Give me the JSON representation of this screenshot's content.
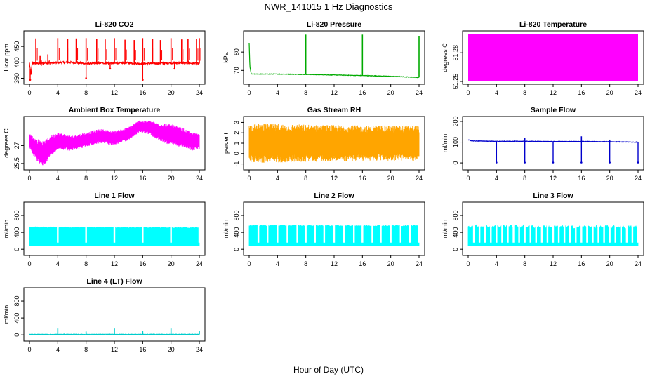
{
  "title": "NWR_141015  1 Hz Diagnostics",
  "xlabel": "Hour of Day (UTC)",
  "chart_data": [
    {
      "type": "line",
      "title": "Li-820 CO2",
      "ylabel": "Licor ppm",
      "color": "#ff0000",
      "xlim": [
        0,
        24
      ],
      "xticks": [
        0,
        4,
        8,
        12,
        16,
        20,
        24
      ],
      "ylim": [
        340,
        490
      ],
      "yticks": [
        350,
        400,
        450
      ],
      "pattern": "spiky",
      "series": [
        {
          "name": "",
          "values": [
            [
              0,
              398
            ],
            [
              0.2,
              360
            ],
            [
              0.4,
              398
            ],
            [
              1.0,
              396
            ],
            [
              1.6,
              397
            ],
            [
              2.0,
              398
            ],
            [
              4.0,
              399
            ],
            [
              6.0,
              400
            ],
            [
              8.0,
              396
            ],
            [
              10.0,
              398
            ],
            [
              12.0,
              397
            ],
            [
              14.0,
              398
            ],
            [
              16.0,
              396
            ],
            [
              18.0,
              397
            ],
            [
              20.0,
              398
            ],
            [
              22.0,
              398
            ],
            [
              24.0,
              396
            ]
          ]
        }
      ],
      "spikes": [
        [
          0.9,
          475
        ],
        [
          1.5,
          420
        ],
        [
          2.6,
          425
        ],
        [
          4.0,
          476
        ],
        [
          5.4,
          474
        ],
        [
          6.6,
          475
        ],
        [
          8.0,
          476
        ],
        [
          9.5,
          474
        ],
        [
          10.7,
          472
        ],
        [
          12.0,
          476
        ],
        [
          13.5,
          471
        ],
        [
          14.8,
          470
        ],
        [
          16.0,
          476
        ],
        [
          17.4,
          474
        ],
        [
          18.5,
          470
        ],
        [
          20.0,
          476
        ],
        [
          21.5,
          472
        ],
        [
          22.4,
          474
        ],
        [
          23.6,
          474
        ],
        [
          24.0,
          476
        ]
      ],
      "dips": [
        [
          0.1,
          345
        ],
        [
          8.0,
          350
        ],
        [
          16.0,
          345
        ],
        [
          11.4,
          380
        ],
        [
          20.5,
          380
        ]
      ]
    },
    {
      "type": "line",
      "title": "Li-820 Pressure",
      "ylabel": "kPa",
      "color": "#00aa00",
      "xlim": [
        0,
        24
      ],
      "xticks": [
        0,
        4,
        8,
        12,
        16,
        20,
        24
      ],
      "ylim": [
        64,
        90
      ],
      "yticks": [
        70,
        80
      ],
      "pattern": "baseline",
      "series": [
        {
          "name": "",
          "values": [
            [
              0,
              85
            ],
            [
              0.1,
              72
            ],
            [
              0.3,
              68
            ],
            [
              4,
              68
            ],
            [
              8,
              67.8
            ],
            [
              12,
              67.5
            ],
            [
              16,
              67.2
            ],
            [
              20,
              66.8
            ],
            [
              24,
              66.2
            ]
          ]
        }
      ],
      "spikes": [
        [
          8.0,
          89.5
        ],
        [
          16.0,
          89.5
        ],
        [
          24.0,
          88.5
        ]
      ]
    },
    {
      "type": "area",
      "title": "Li-820 Temperature",
      "ylabel": "degrees C",
      "color": "#ff00ff",
      "xlim": [
        0,
        24
      ],
      "xticks": [
        0,
        4,
        8,
        12,
        16,
        20,
        24
      ],
      "ylim": [
        51.25,
        51.3
      ],
      "yticks": [
        51.25,
        51.28
      ],
      "pattern": "fill",
      "series": [
        {
          "name": "",
          "values": [
            [
              0,
              51.25
            ],
            [
              24,
              51.3
            ]
          ]
        }
      ]
    },
    {
      "type": "line",
      "title": "Ambient Box Temperature",
      "ylabel": "degrees C",
      "color": "#ff00ff",
      "xlim": [
        0,
        24
      ],
      "xticks": [
        0,
        4,
        8,
        12,
        16,
        20,
        24
      ],
      "ylim": [
        25.2,
        29.2
      ],
      "yticks": [
        25.5,
        27.0
      ],
      "pattern": "band",
      "series": [
        {
          "name": "",
          "values": [
            [
              0,
              27.4
            ],
            [
              1,
              26.6
            ],
            [
              2,
              26.3
            ],
            [
              3,
              27.0
            ],
            [
              4,
              27.4
            ],
            [
              6,
              27.2
            ],
            [
              8,
              27.5
            ],
            [
              10,
              27.8
            ],
            [
              12,
              27.6
            ],
            [
              14,
              28.0
            ],
            [
              15.5,
              28.6
            ],
            [
              17,
              28.5
            ],
            [
              18,
              28.2
            ],
            [
              20,
              27.9
            ],
            [
              22,
              27.6
            ],
            [
              23,
              27.3
            ],
            [
              24,
              27.4
            ]
          ]
        }
      ],
      "band": [
        [
          0,
          0.6
        ],
        [
          1.5,
          1.1
        ],
        [
          4,
          0.7
        ],
        [
          8,
          0.6
        ],
        [
          12,
          0.6
        ],
        [
          16,
          0.5
        ],
        [
          20,
          0.9
        ],
        [
          24,
          0.7
        ]
      ]
    },
    {
      "type": "line",
      "title": "Gas Stream RH",
      "ylabel": "percent",
      "color": "#ffa500",
      "xlim": [
        0,
        24
      ],
      "xticks": [
        0,
        4,
        8,
        12,
        16,
        20,
        24
      ],
      "ylim": [
        -1.3,
        3.3
      ],
      "yticks": [
        -1,
        0,
        1,
        2,
        3
      ],
      "pattern": "band",
      "series": [
        {
          "name": "",
          "values": [
            [
              0,
              1.0
            ],
            [
              24,
              1.0
            ]
          ]
        }
      ],
      "band": [
        [
          0,
          1.8
        ],
        [
          2,
          1.9
        ],
        [
          8,
          1.8
        ],
        [
          16,
          1.7
        ],
        [
          24,
          1.7
        ]
      ]
    },
    {
      "type": "line",
      "title": "Sample Flow",
      "ylabel": "ml/min",
      "color": "#0000cc",
      "xlim": [
        0,
        24
      ],
      "xticks": [
        0,
        4,
        8,
        12,
        16,
        20,
        24
      ],
      "ylim": [
        -20,
        210
      ],
      "yticks": [
        0,
        100,
        200
      ],
      "pattern": "baseline",
      "series": [
        {
          "name": "",
          "values": [
            [
              0,
              112
            ],
            [
              0.4,
              106
            ],
            [
              4,
              104
            ],
            [
              8,
              104
            ],
            [
              12,
              103
            ],
            [
              16,
              103
            ],
            [
              20,
              102
            ],
            [
              24,
              100
            ]
          ]
        }
      ],
      "spikes": [
        [
          8.0,
          120
        ],
        [
          16.0,
          128
        ],
        [
          20.0,
          112
        ]
      ],
      "dips": [
        [
          4.0,
          2
        ],
        [
          8.0,
          2
        ],
        [
          12.0,
          2
        ],
        [
          16.0,
          2
        ],
        [
          20.0,
          2
        ],
        [
          24.0,
          2
        ]
      ]
    },
    {
      "type": "area",
      "title": "Line 1 Flow",
      "ylabel": "ml/min",
      "color": "#00ffff",
      "xlim": [
        0,
        24
      ],
      "xticks": [
        0,
        4,
        8,
        12,
        16,
        20,
        24
      ],
      "ylim": [
        -80,
        1050
      ],
      "yticks": [
        0,
        400,
        800
      ],
      "pattern": "columns",
      "series": [
        {
          "name": "",
          "values": [
            [
              0,
              520
            ],
            [
              24,
              510
            ]
          ]
        }
      ],
      "floor": 90,
      "gaps": [
        4.0,
        8.0,
        12.0,
        16.0,
        20.0,
        24.0
      ]
    },
    {
      "type": "area",
      "title": "Line 2 Flow",
      "ylabel": "ml/min",
      "color": "#00ffff",
      "xlim": [
        0,
        24
      ],
      "xticks": [
        0,
        4,
        8,
        12,
        16,
        20,
        24
      ],
      "ylim": [
        -80,
        1050
      ],
      "yticks": [
        0,
        400,
        800
      ],
      "pattern": "columns",
      "series": [
        {
          "name": "",
          "values": [
            [
              0,
              560
            ],
            [
              24,
              555
            ]
          ]
        }
      ],
      "floor": 90,
      "gaps": [
        1.3,
        2.6,
        4.0,
        5.4,
        6.8,
        8.0,
        9.3,
        10.6,
        12.0,
        13.4,
        14.8,
        16.0,
        17.4,
        18.6,
        20.0,
        21.4,
        22.7,
        24.0
      ]
    },
    {
      "type": "area",
      "title": "Line 3 Flow",
      "ylabel": "ml/min",
      "color": "#00ffff",
      "xlim": [
        0,
        24
      ],
      "xticks": [
        0,
        4,
        8,
        12,
        16,
        20,
        24
      ],
      "ylim": [
        -80,
        1050
      ],
      "yticks": [
        0,
        400,
        800
      ],
      "pattern": "columns",
      "series": [
        {
          "name": "",
          "values": [
            [
              0,
              540
            ],
            [
              24,
              520
            ]
          ]
        }
      ],
      "floor": 90,
      "gaps": [
        0.8,
        1.6,
        2.4,
        3.2,
        4.0,
        4.8,
        5.6,
        6.4,
        7.2,
        8.0,
        8.8,
        9.6,
        10.4,
        11.2,
        12.0,
        12.8,
        13.6,
        14.4,
        15.2,
        16.0,
        16.8,
        17.6,
        18.4,
        19.2,
        20.0,
        20.8,
        21.6,
        22.4,
        23.2,
        24.0
      ]
    },
    {
      "type": "line",
      "title": "Line 4 (LT) Flow",
      "ylabel": "ml/min",
      "color": "#00cccc",
      "xlim": [
        0,
        24
      ],
      "xticks": [
        0,
        4,
        8,
        12,
        16,
        20,
        24
      ],
      "ylim": [
        -80,
        1050
      ],
      "yticks": [
        0,
        400,
        800
      ],
      "pattern": "baseline",
      "series": [
        {
          "name": "",
          "values": [
            [
              0,
              10
            ],
            [
              24,
              12
            ]
          ]
        }
      ],
      "spikes": [
        [
          4.0,
          150
        ],
        [
          8.0,
          80
        ],
        [
          12.0,
          150
        ],
        [
          16.0,
          90
        ],
        [
          20.0,
          150
        ],
        [
          24.0,
          90
        ]
      ]
    }
  ]
}
